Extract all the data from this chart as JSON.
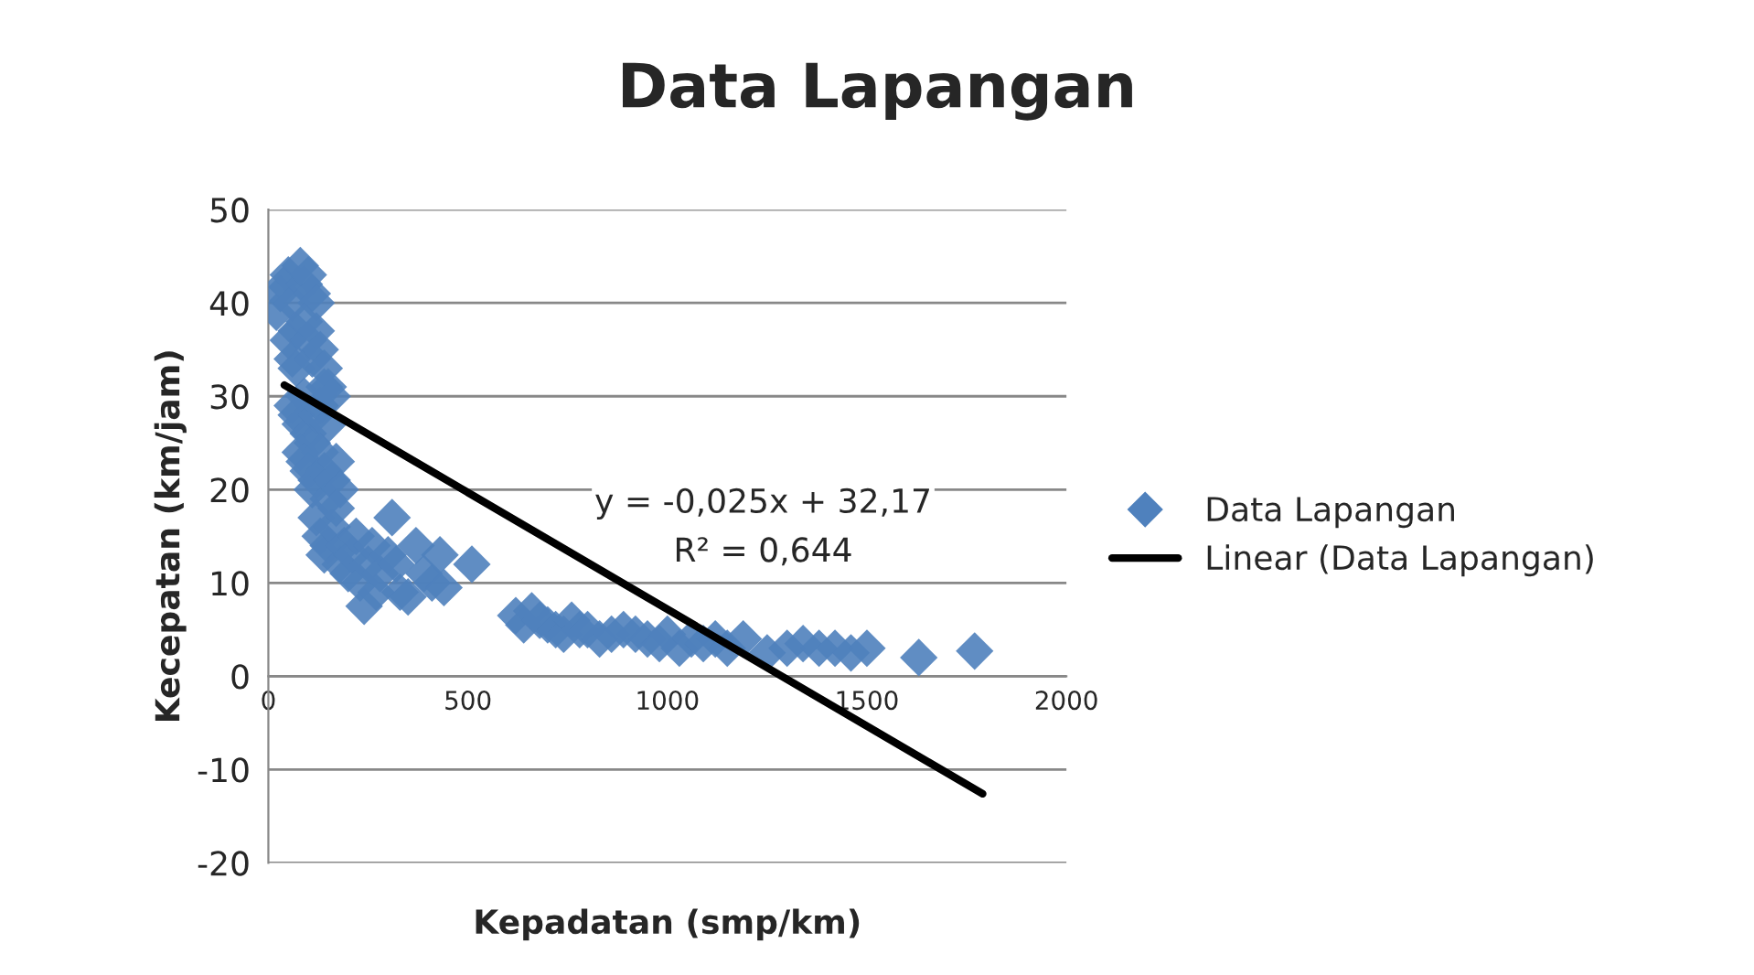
{
  "chart_data": {
    "type": "scatter",
    "title": "Data Lapangan",
    "xlabel": "Kepadatan (smp/km)",
    "ylabel": "Kecepatan (km/jam)",
    "xlim": [
      0,
      2000
    ],
    "xticks": [
      0,
      500,
      1000,
      1500,
      2000
    ],
    "ylim": [
      -20,
      50
    ],
    "yticks": [
      -20,
      -10,
      0,
      10,
      20,
      30,
      40,
      50
    ],
    "grid": "y",
    "legend": "right",
    "annotations": [
      "y = -0,025x + 32,17",
      "R² = 0,644"
    ],
    "series": [
      {
        "name": "Data Lapangan",
        "marker": "diamond",
        "color": "#4f81bd",
        "x": [
          20,
          30,
          40,
          50,
          60,
          70,
          80,
          90,
          100,
          110,
          120,
          50,
          60,
          70,
          90,
          100,
          110,
          120,
          130,
          140,
          150,
          60,
          70,
          80,
          90,
          100,
          110,
          120,
          130,
          140,
          150,
          160,
          80,
          90,
          100,
          110,
          120,
          130,
          140,
          150,
          160,
          170,
          180,
          120,
          130,
          140,
          150,
          160,
          170,
          180,
          190,
          200,
          210,
          220,
          230,
          240,
          250,
          260,
          270,
          280,
          300,
          310,
          320,
          330,
          350,
          370,
          390,
          410,
          430,
          440,
          510,
          620,
          640,
          660,
          680,
          700,
          720,
          740,
          760,
          780,
          800,
          830,
          860,
          890,
          920,
          950,
          980,
          1000,
          1030,
          1060,
          1090,
          1120,
          1150,
          1190,
          1250,
          1300,
          1340,
          1380,
          1420,
          1460,
          1500,
          1630,
          1770
        ],
        "values": [
          39,
          41,
          42,
          43,
          40,
          37,
          44,
          42,
          43,
          41,
          40,
          36,
          34,
          33,
          38,
          36,
          34,
          37,
          35,
          33,
          31,
          29,
          28,
          27,
          30,
          26,
          25,
          28,
          29,
          31,
          27,
          30,
          24,
          23,
          22,
          20,
          21,
          24,
          22,
          19,
          21,
          23,
          20,
          17,
          15,
          13,
          14,
          16,
          18,
          12,
          14,
          11,
          13,
          15,
          10,
          7.5,
          12,
          14,
          9,
          11,
          13,
          17,
          12,
          9,
          8.5,
          14,
          11,
          10,
          13,
          9.5,
          12,
          6.5,
          5.5,
          7,
          6,
          5.5,
          5,
          4.5,
          6,
          5,
          5,
          4,
          4.5,
          5,
          4.5,
          4,
          3.5,
          4.5,
          3,
          4,
          3.5,
          4,
          3,
          4,
          2.5,
          3,
          3.5,
          3,
          3,
          2.5,
          3,
          2,
          2.7
        ]
      },
      {
        "name": "Linear (Data Lapangan)",
        "type": "line",
        "marker": "none",
        "line_style": "solid",
        "color": "#000000",
        "x": [
          40,
          1790
        ],
        "values": [
          31.2,
          -12.6
        ]
      }
    ]
  }
}
